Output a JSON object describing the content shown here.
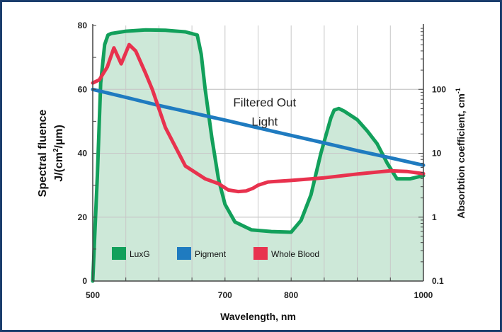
{
  "chart_data": {
    "type": "line",
    "title": "",
    "xlabel": "Wavelength, nm",
    "ylabel_left_line1": "Spectral fluence",
    "ylabel_left_line2_prefix": "J/(cm",
    "ylabel_left_line2_sup": "2",
    "ylabel_left_line2_suffix": "/µm)",
    "ylabel_right": "Absorbtion coefficient, cm",
    "ylabel_right_sup": "-1",
    "xlim": [
      500,
      1000
    ],
    "ylim_left": [
      0,
      80
    ],
    "ylim_right": [
      0.1,
      1000
    ],
    "right_scale": "log",
    "x_ticks": [
      "500",
      "700",
      "800",
      "1000"
    ],
    "x_tick_values": [
      500,
      700,
      800,
      1000
    ],
    "y_left_ticks": [
      "0",
      "20",
      "40",
      "60",
      "80"
    ],
    "y_left_tick_values": [
      0,
      20,
      40,
      60,
      80
    ],
    "y_right_ticks": [
      "0.1",
      "1",
      "10",
      "100"
    ],
    "y_right_tick_values": [
      0.1,
      1,
      10,
      100
    ],
    "grid": true,
    "legend_position": "bottom-left",
    "annotation_line1": "Filtered Out",
    "annotation_line2": "Light",
    "series": [
      {
        "name": "LuxG",
        "axis": "left",
        "color": "#12a05b",
        "fill": "#cde8d8",
        "x": [
          500,
          507,
          512,
          518,
          523,
          528,
          550,
          580,
          610,
          640,
          658,
          664,
          670,
          680,
          690,
          700,
          715,
          740,
          770,
          800,
          815,
          830,
          845,
          860,
          865,
          872,
          880,
          900,
          915,
          930,
          945,
          960,
          980,
          1000
        ],
        "values": [
          0,
          33,
          62,
          74,
          77,
          77.5,
          78.2,
          78.6,
          78.5,
          78,
          77,
          71,
          60,
          45,
          32,
          24,
          18.5,
          16,
          15.5,
          15.3,
          19,
          27,
          40,
          51,
          53.5,
          54,
          53.2,
          50.5,
          47,
          43,
          37,
          32,
          32,
          33
        ]
      },
      {
        "name": "Pigment",
        "axis": "right",
        "color": "#1f7bc0",
        "x": [
          500,
          550,
          600,
          650,
          700,
          750,
          800,
          850,
          900,
          950,
          1000
        ],
        "values": [
          100,
          75,
          56,
          43,
          33,
          25,
          19,
          14.5,
          11,
          8.5,
          6.5
        ]
      },
      {
        "name": "Whole Blood",
        "axis": "left",
        "color": "#e8324e",
        "x": [
          500,
          510,
          522,
          532,
          543,
          555,
          565,
          580,
          590,
          610,
          640,
          670,
          690,
          705,
          720,
          732,
          742,
          750,
          765,
          800,
          850,
          900,
          950,
          975,
          1000
        ],
        "values": [
          62,
          63,
          67,
          73,
          68,
          74,
          72,
          65,
          60,
          48,
          36,
          32,
          30.5,
          28.5,
          28,
          28.2,
          29,
          30,
          31,
          31.5,
          32.3,
          33.5,
          34.5,
          34.3,
          33.6
        ]
      }
    ]
  }
}
